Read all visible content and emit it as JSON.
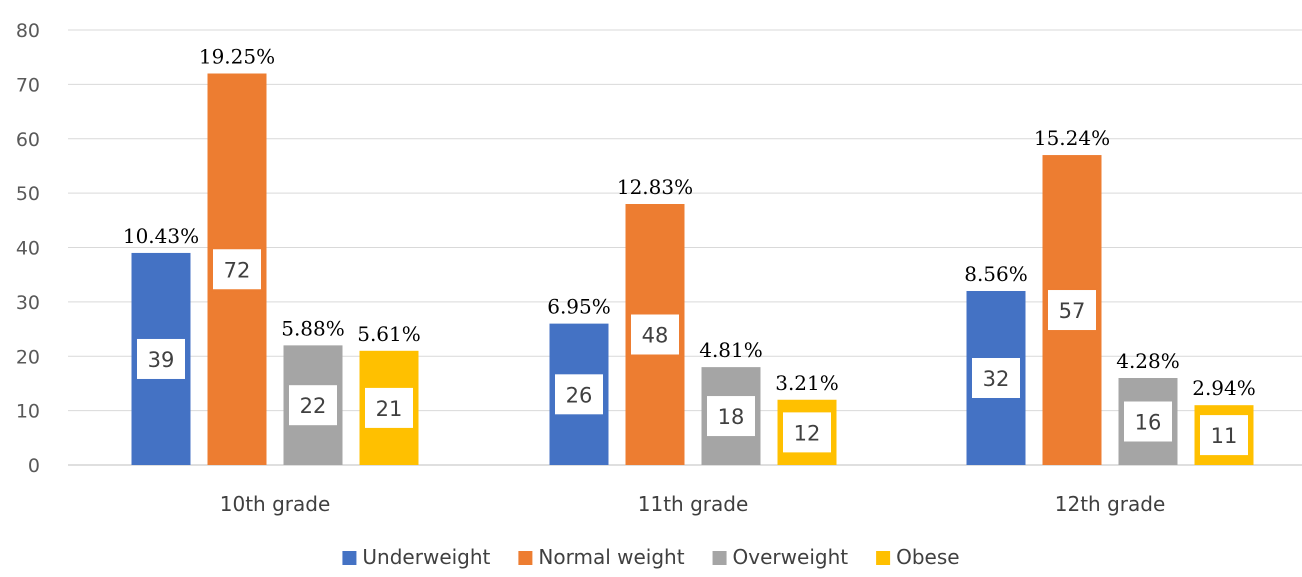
{
  "chart_data": {
    "type": "bar",
    "categories": [
      "10th grade",
      "11th grade",
      "12th grade"
    ],
    "series": [
      {
        "name": "Underweight",
        "color": "#4472C4",
        "values": [
          39,
          26,
          32
        ],
        "labels": [
          "10.43%",
          "6.95%",
          "8.56%"
        ]
      },
      {
        "name": "Normal weight",
        "color": "#ED7D31",
        "values": [
          72,
          48,
          57
        ],
        "labels": [
          "19.25%",
          "12.83%",
          "15.24%"
        ]
      },
      {
        "name": "Overweight",
        "color": "#A5A5A5",
        "values": [
          22,
          18,
          16
        ],
        "labels": [
          "5.88%",
          "4.81%",
          "4.28%"
        ]
      },
      {
        "name": "Obese",
        "color": "#FFC000",
        "values": [
          21,
          12,
          11
        ],
        "labels": [
          "5.61%",
          "3.21%",
          "2.94%"
        ]
      }
    ],
    "ylim": [
      0,
      80
    ],
    "yticks": [
      0,
      10,
      20,
      30,
      40,
      50,
      60,
      70,
      80
    ],
    "title": "",
    "xlabel": "",
    "ylabel": "",
    "grid": true,
    "legend_position": "bottom"
  }
}
